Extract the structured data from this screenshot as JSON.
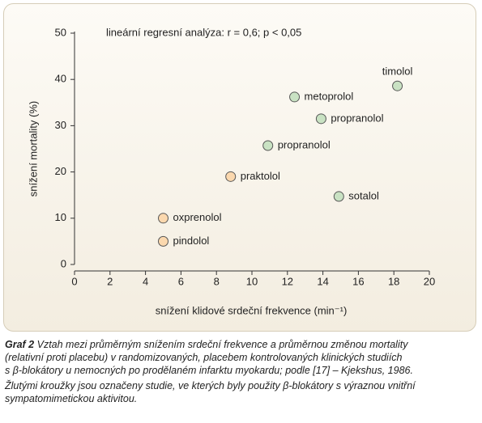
{
  "chart_data": {
    "type": "scatter",
    "annotation": "lineární regresní analýza: r = 0,6; p < 0,05",
    "xlabel": "snížení klidové srdeční frekvence (min⁻¹)",
    "ylabel": "snížení mortality (%)",
    "labels": [
      "pindolol",
      "oxprenolol",
      "praktolol",
      "sotalol",
      "propranolol",
      "propranolol",
      "metoprolol",
      "timolol"
    ],
    "x": [
      5,
      5,
      8.8,
      14.9,
      10.9,
      13.9,
      12.4,
      18.2
    ],
    "y": [
      5,
      10,
      19,
      14.7,
      25.7,
      31.5,
      36.2,
      38.6
    ],
    "colors": [
      "#fbd8ae",
      "#fbd8ae",
      "#fbd8ae",
      "#c9e2c3",
      "#c9e2c3",
      "#c9e2c3",
      "#c9e2c3",
      "#c9e2c3"
    ],
    "xlim": [
      0,
      20
    ],
    "xticks": [
      0,
      2,
      4,
      6,
      8,
      10,
      12,
      14,
      16,
      18,
      20
    ],
    "ylim": [
      0,
      50
    ],
    "yticks": [
      0,
      10,
      20,
      30,
      40,
      50
    ],
    "grid": false
  },
  "caption": {
    "label": "Graf 2",
    "lines": [
      "Vztah mezi průměrným snížením srdeční frekvence a průměrnou změnou mortality",
      "(relativní proti placebu) v randomizovaných, placebem kontrolovaných klinických studiích",
      "s β-blokátory u nemocných po prodělaném infarktu myokardu; podle [17] – Kjekshus, 1986."
    ],
    "note_lines": [
      "Žlutými kroužky jsou označeny studie, ve kterých byly použity β-blokátory s výraznou vnitřní",
      "sympatomimetickou aktivitou."
    ]
  }
}
